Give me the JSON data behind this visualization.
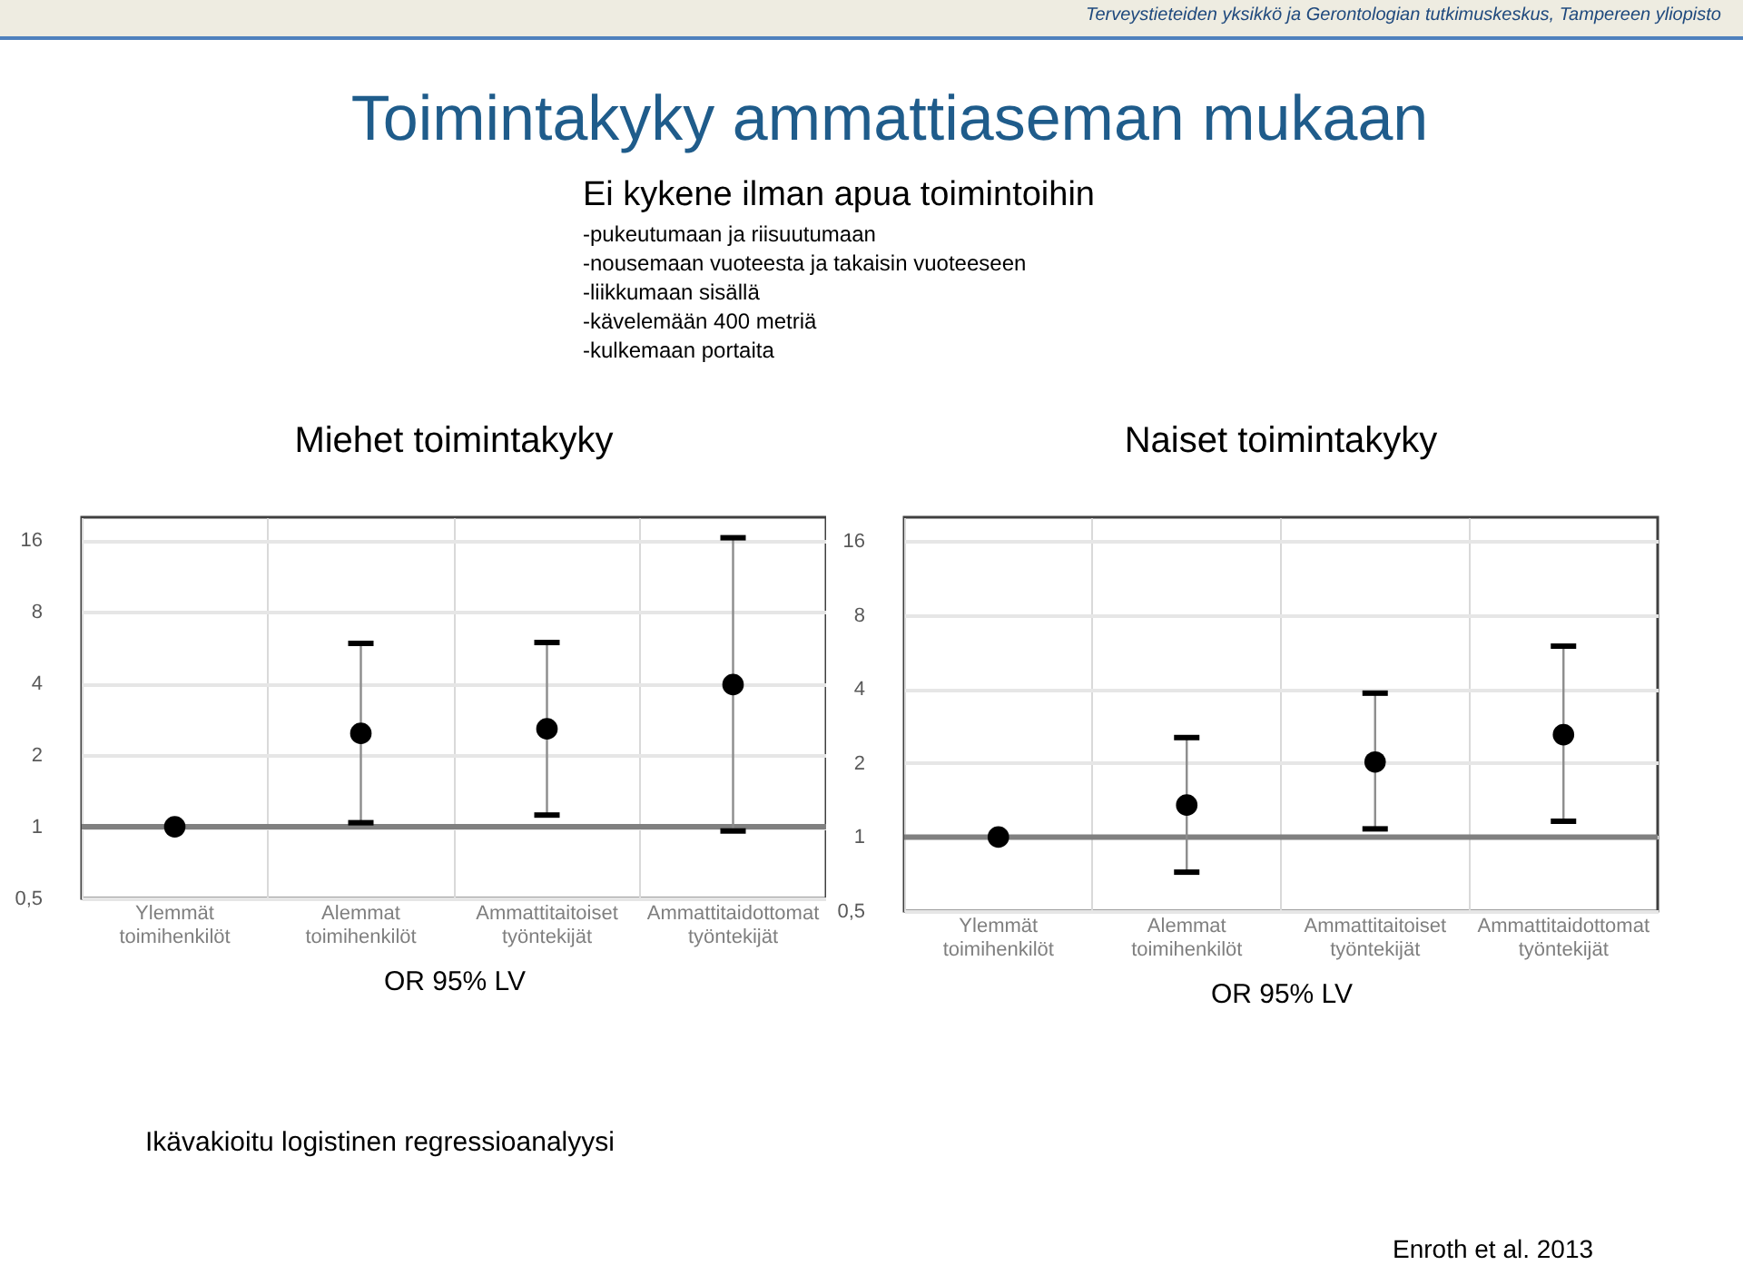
{
  "chart_data": [
    {
      "type": "scatter",
      "title": "Miehet toimintakyky",
      "xlabel": "OR 95% LV",
      "categories": [
        "Ylemmät toimihenkilöt",
        "Alemmat toimihenkilöt",
        "Ammattitaitoiset työntekijät",
        "Ammattitaidottomat työntekijät"
      ],
      "series": [
        {
          "color": "#000000",
          "values": [
            1,
            2.47,
            2.58,
            3.96
          ],
          "errors": [
            null,
            [
              1.04,
              5.9
            ],
            [
              1.12,
              5.95
            ],
            [
              0.96,
              16.4
            ]
          ]
        }
      ],
      "ylim": [
        0.5,
        20
      ],
      "yticks": [
        {
          "value": 0.5,
          "label": "0,5"
        },
        1,
        2,
        4,
        8,
        16
      ],
      "log": "y",
      "grid": true,
      "marker": "circle",
      "ref_lines": [
        {
          "axis": "y",
          "value": 1,
          "color": "#808080"
        }
      ],
      "annotations": [
        "Terveystieteiden yksikkö ja Gerontologian tutkimuskeskus, Tampereen yliopisto",
        "Toimintakyky ammattiaseman mukaan",
        "Ei kykene ilman apua toimintoihin",
        "-pukeutumaan ja riisuutumaan",
        "-nousemaan vuoteesta ja takaisin vuoteeseen",
        "-liikkumaan sisällä",
        "-kävelemään 400 metriä",
        "-kulkemaan portaita",
        "Ikävakioitu logistinen regressioanalyysi",
        "Enroth et al. 2013"
      ]
    },
    {
      "type": "scatter",
      "title": "Naiset toimintakyky",
      "xlabel": "OR 95% LV",
      "categories": [
        "Ylemmät toimihenkilöt",
        "Alemmat toimihenkilöt",
        "Ammattitaitoiset työntekijät",
        "Ammattitaidottomat työntekijät"
      ],
      "series": [
        {
          "color": "#000000",
          "values": [
            1,
            1.35,
            2.02,
            2.61
          ],
          "errors": [
            null,
            [
              0.72,
              2.54
            ],
            [
              1.08,
              3.85
            ],
            [
              1.16,
              5.98
            ]
          ]
        }
      ],
      "ylim": [
        0.5,
        20
      ],
      "yticks": [
        {
          "value": 0.5,
          "label": "0,5"
        },
        1,
        2,
        4,
        8,
        16
      ],
      "log": "y",
      "grid": true,
      "marker": "circle",
      "ref_lines": [
        {
          "axis": "y",
          "value": 1,
          "color": "#808080"
        }
      ]
    }
  ]
}
